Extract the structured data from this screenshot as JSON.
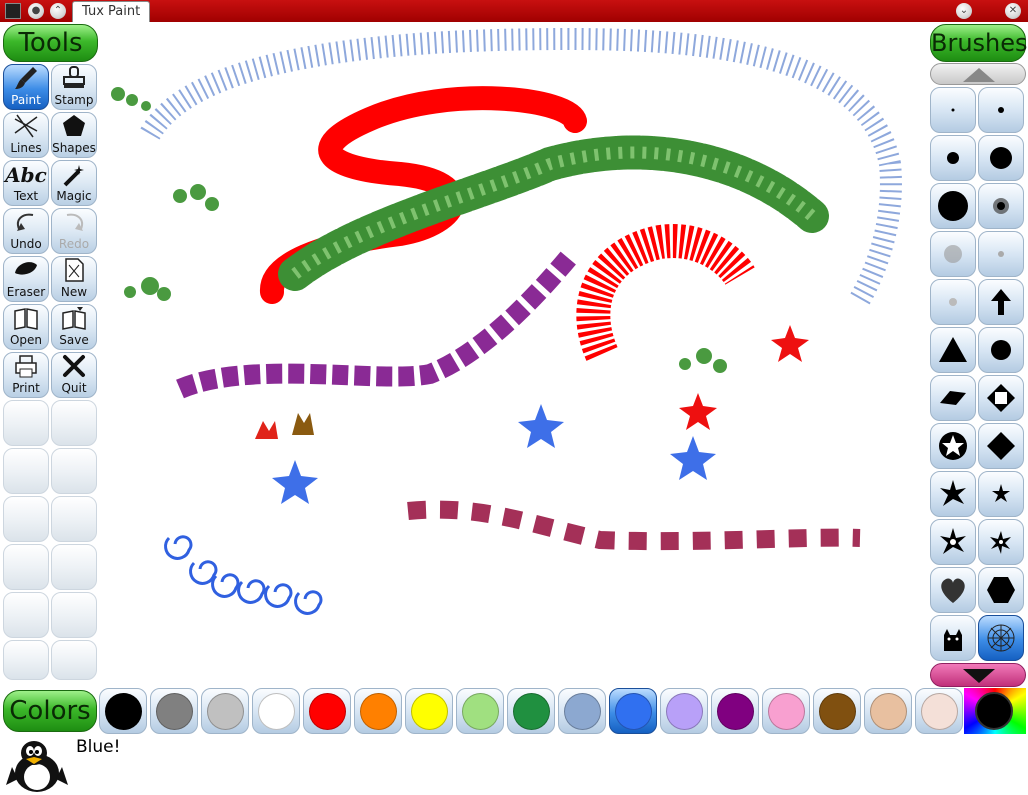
{
  "window": {
    "title": "Tux Paint"
  },
  "tools": {
    "header": "Tools",
    "items": [
      {
        "label": "Paint",
        "icon": "paintbrush-icon",
        "active": true
      },
      {
        "label": "Stamp",
        "icon": "stamp-icon"
      },
      {
        "label": "Lines",
        "icon": "lines-icon"
      },
      {
        "label": "Shapes",
        "icon": "pentagon-icon"
      },
      {
        "label": "Text",
        "icon": "text-abc-icon",
        "glyph": "Abc"
      },
      {
        "label": "Magic",
        "icon": "magic-wand-icon"
      },
      {
        "label": "Undo",
        "icon": "undo-icon"
      },
      {
        "label": "Redo",
        "icon": "redo-icon",
        "disabled": true
      },
      {
        "label": "Eraser",
        "icon": "eraser-icon"
      },
      {
        "label": "New",
        "icon": "new-page-icon"
      },
      {
        "label": "Open",
        "icon": "open-book-icon"
      },
      {
        "label": "Save",
        "icon": "save-book-icon"
      },
      {
        "label": "Print",
        "icon": "printer-icon"
      },
      {
        "label": "Quit",
        "icon": "quit-x-icon"
      }
    ]
  },
  "brushes": {
    "header": "Brushes",
    "items": [
      "tiny-dot-brush-icon",
      "small-dot-brush-icon",
      "medium-dot-brush-icon",
      "large-dot-brush-icon",
      "huge-dot-brush-icon",
      "fuzzy-dot-brush-icon",
      "gray-fuzzy-brush-icon",
      "faint-dot-brush-icon",
      "faint-small-brush-icon",
      "arrow-up-brush-icon",
      "triangle-brush-icon",
      "circle-brush-icon",
      "rhombus-brush-icon",
      "diamond-outline-brush-icon",
      "star-circle-brush-icon",
      "diamond-brush-icon",
      "flower-brush-icon",
      "small-star-brush-icon",
      "daisy-brush-icon",
      "sparkle-brush-icon",
      "heart-brush-icon",
      "hexagon-brush-icon",
      "cat-brush-icon",
      "web-brush-icon"
    ],
    "active_index": 23
  },
  "colors": {
    "header": "Colors",
    "swatches": [
      "#000000",
      "#808080",
      "#c0c0c0",
      "#ffffff",
      "#ff0000",
      "#ff8000",
      "#ffff00",
      "#a0e080",
      "#209040",
      "#8ca8d0",
      "#3070f0",
      "#b8a0f8",
      "#800080",
      "#f8a0d0",
      "#805010",
      "#e8c0a0",
      "#f4e0d8"
    ],
    "active_index": 10
  },
  "status": {
    "message": "Blue!"
  }
}
